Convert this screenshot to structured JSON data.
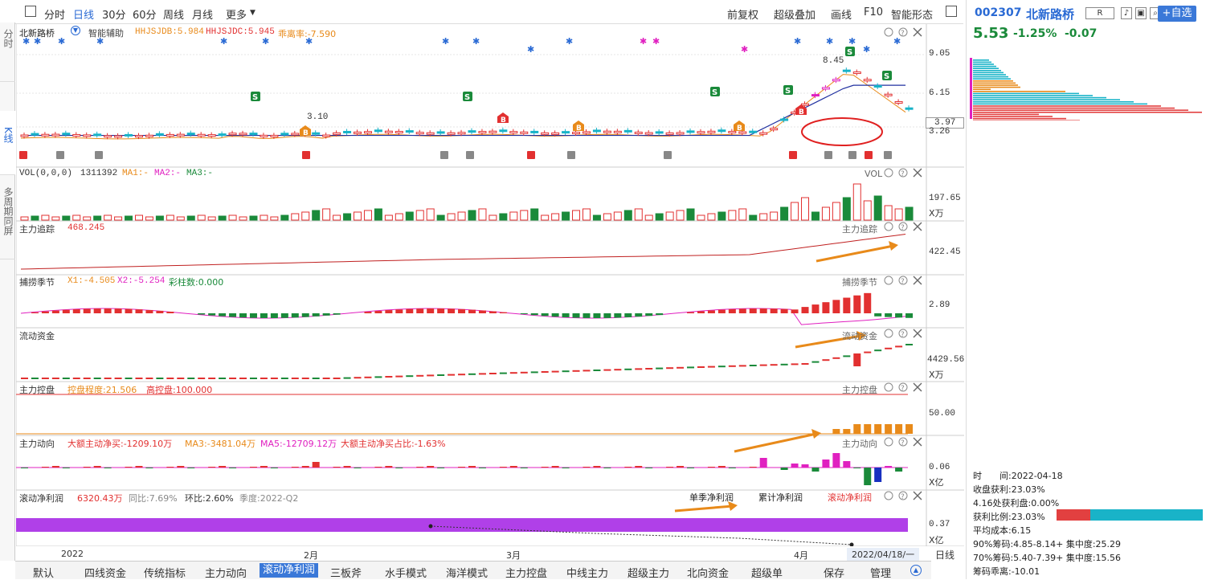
{
  "left_tabs": [
    "分时",
    "K线",
    "多周期同屏"
  ],
  "top_tabs": [
    "分时",
    "日线",
    "30分",
    "60分",
    "周线",
    "月线",
    "更多"
  ],
  "top_right": [
    "前复权",
    "超级叠加",
    "画线",
    "F10",
    "智能形态"
  ],
  "stock": {
    "code": "002307",
    "name": "北新路桥",
    "price": "5.53",
    "pct": "-1.25%",
    "chg": "-0.07",
    "add_label": "+自选",
    "r_label": "R"
  },
  "main_legend": {
    "name": "北新路桥",
    "assist": "智能辅助",
    "l1": "HHJSJDB:5.984",
    "l2": "HHJSJDC:5.945",
    "l3": "乖离率:-7.590"
  },
  "price_axis": [
    "9.05",
    "6.15",
    "3.97",
    "3.26"
  ],
  "price_labels": {
    "high": "8.45",
    "low": "3.10"
  },
  "vol": {
    "legend": "VOL(0,0,0)",
    "value": "1311392",
    "ma1": "MA1:-",
    "ma2": "MA2:-",
    "ma3": "MA3:-",
    "tag": "VOL",
    "axis": "197.65",
    "unit": "X万"
  },
  "zlzz": {
    "legend": "主力追踪",
    "value": "468.245",
    "tag": "主力追踪",
    "axis": "422.45"
  },
  "bljj": {
    "legend": "捕捞季节",
    "x1": "X1:-4.505",
    "x2": "X2:-5.254",
    "cz": "彩柱数:0.000",
    "tag": "捕捞季节",
    "axis": "2.89"
  },
  "ldzj": {
    "legend": "流动资金",
    "tag": "流动资金",
    "axis": "4429.56",
    "unit": "X万"
  },
  "zlkp": {
    "legend": "主力控盘",
    "a": "控盘程度:21.506",
    "b": "高控盘:100.000",
    "tag": "主力控盘",
    "axis": "50.00"
  },
  "zldx": {
    "legend": "主力动向",
    "a": "大额主动净买:-1209.10万",
    "b": "MA3:-3481.04万",
    "c": "MA5:-12709.12万",
    "d": "大额主动净买占比:-1.63%",
    "tag": "主力动向",
    "axis": "0.06",
    "unit": "X亿"
  },
  "gdjlr": {
    "legend": "滚动净利润",
    "a": "6320.43万",
    "b": "同比:7.69%",
    "c": "环比:2.60%",
    "d": "季度:2022-Q2",
    "t1": "单季净利润",
    "t2": "累计净利润",
    "t3": "滚动净利润",
    "axis": "0.37",
    "unit": "X亿"
  },
  "x_axis": [
    "2022",
    "2月",
    "3月",
    "4月"
  ],
  "x_date": "2022/04/18/一",
  "period": "日线",
  "bottom_tabs": [
    "默认",
    "四线资金",
    "传统指标",
    "主力动向",
    "滚动净利润",
    "三板斧",
    "水手模式",
    "海洋模式",
    "主力控盘",
    "中线主力",
    "超级主力",
    "北向资金",
    "超级单",
    "保存",
    "管理"
  ],
  "stats": {
    "time_label": "时",
    "time_value": "间:2022-04-18",
    "lines": [
      "收盘获利:23.03%",
      "4.16处获利盘:0.00%",
      "获利比例:23.03%",
      "平均成本:6.15",
      "90%筹码:4.85-8.14+ 集中度:25.29",
      "70%筹码:5.40-7.39+ 集中度:15.56",
      "筹码乖离:-10.01"
    ],
    "profit_ratio": 0.23
  },
  "colors": {
    "up": "#e23030",
    "down": "#1a8a3a",
    "accent": "#2a6ad4",
    "cyan": "#19b3c8",
    "magenta": "#e020c0",
    "orange": "#e88a1a",
    "purple": "#b040e8"
  }
}
